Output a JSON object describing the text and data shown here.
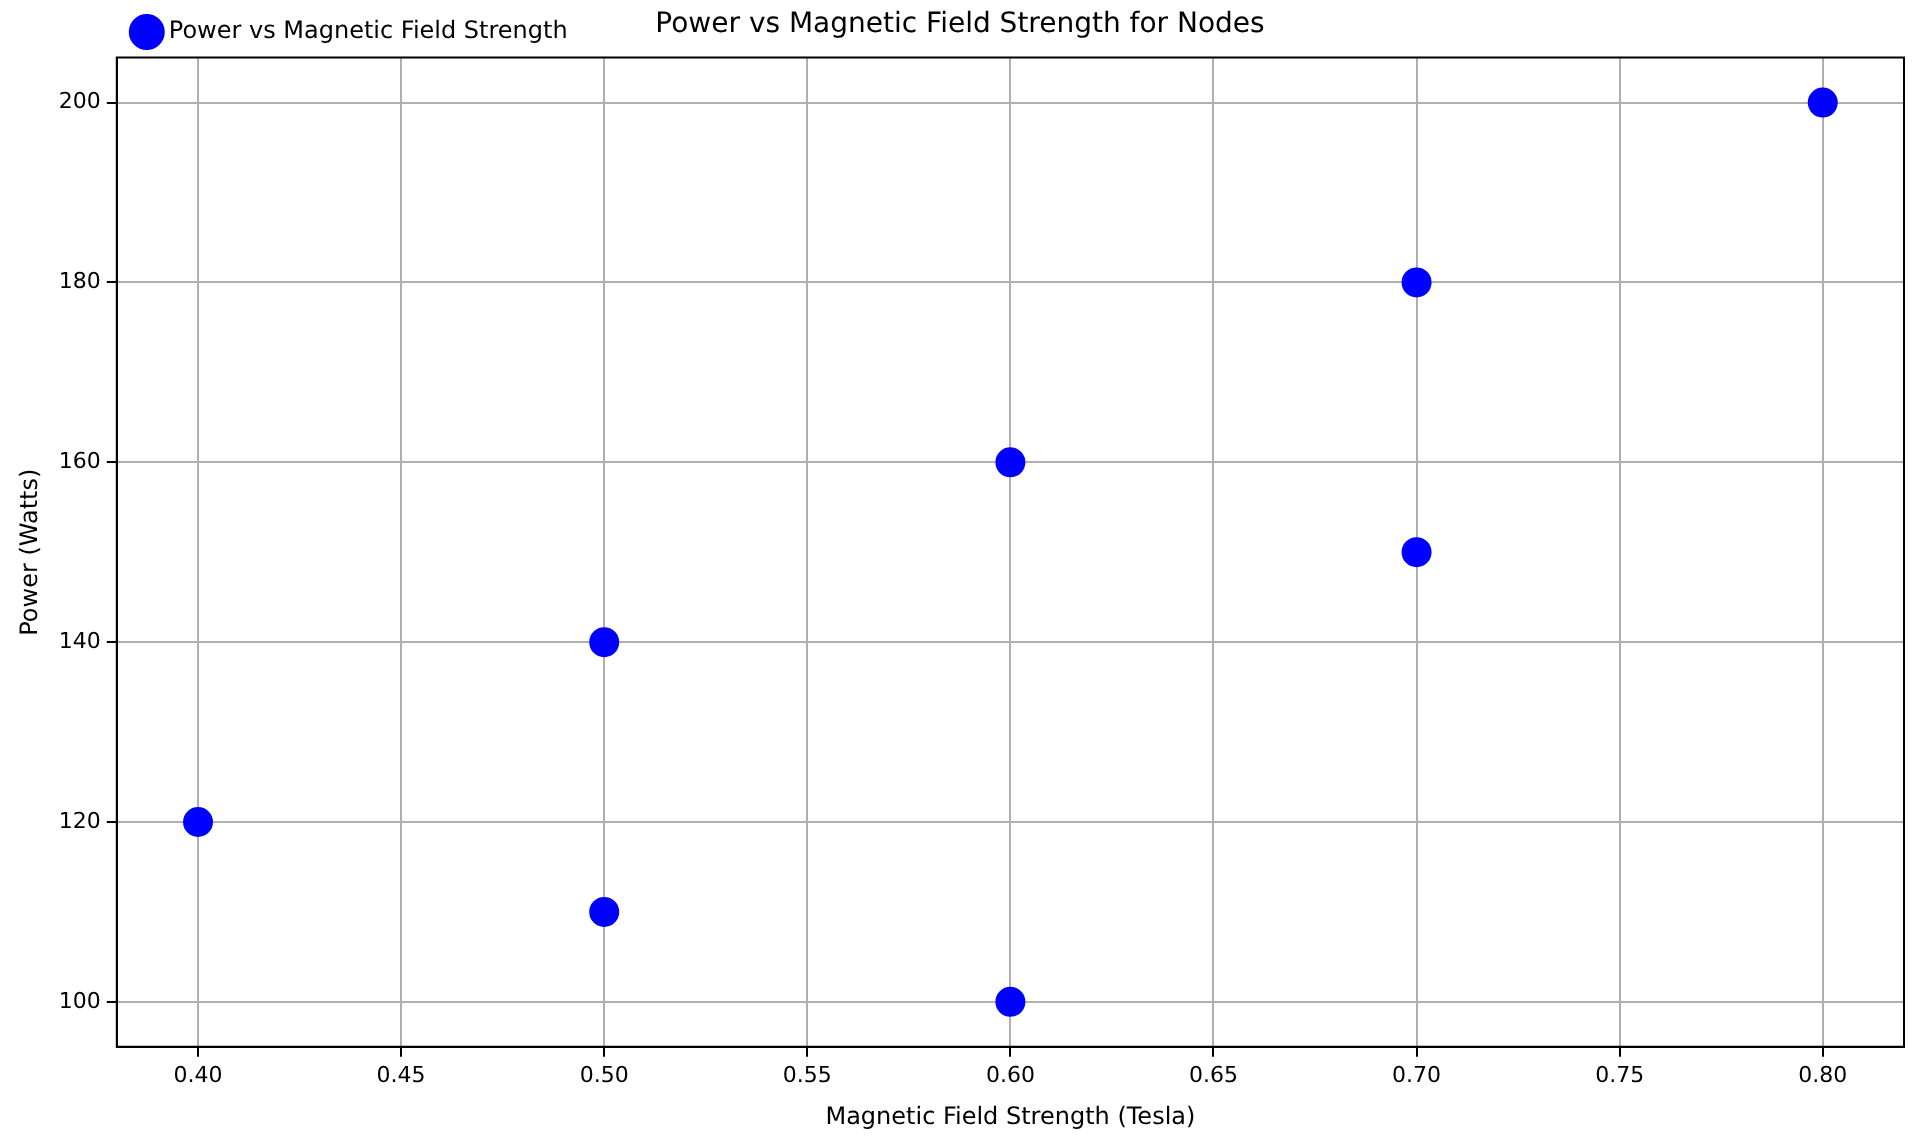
{
  "chart_data": {
    "type": "scatter",
    "title": "Power vs Magnetic Field Strength for Nodes",
    "xlabel": "Magnetic Field Strength (Tesla)",
    "ylabel": "Power (Watts)",
    "x": [
      0.4,
      0.5,
      0.5,
      0.6,
      0.6,
      0.7,
      0.7,
      0.8
    ],
    "series": [
      {
        "name": "Power vs Magnetic Field Strength",
        "color": "#0000ff",
        "values": [
          120,
          140,
          110,
          160,
          100,
          180,
          150,
          200
        ]
      }
    ],
    "xlim": [
      0.38,
      0.82
    ],
    "xticks": [
      {
        "value": 0.4,
        "label": "0.40"
      },
      {
        "value": 0.45,
        "label": "0.45"
      },
      {
        "value": 0.5,
        "label": "0.50"
      },
      {
        "value": 0.55,
        "label": "0.55"
      },
      {
        "value": 0.6,
        "label": "0.60"
      },
      {
        "value": 0.65,
        "label": "0.65"
      },
      {
        "value": 0.7,
        "label": "0.70"
      },
      {
        "value": 0.75,
        "label": "0.75"
      },
      {
        "value": 0.8,
        "label": "0.80"
      }
    ],
    "ylim": [
      95,
      205
    ],
    "yticks": [
      100,
      120,
      140,
      160,
      180,
      200
    ],
    "grid": true,
    "legend": "top left",
    "marker": "circle"
  }
}
